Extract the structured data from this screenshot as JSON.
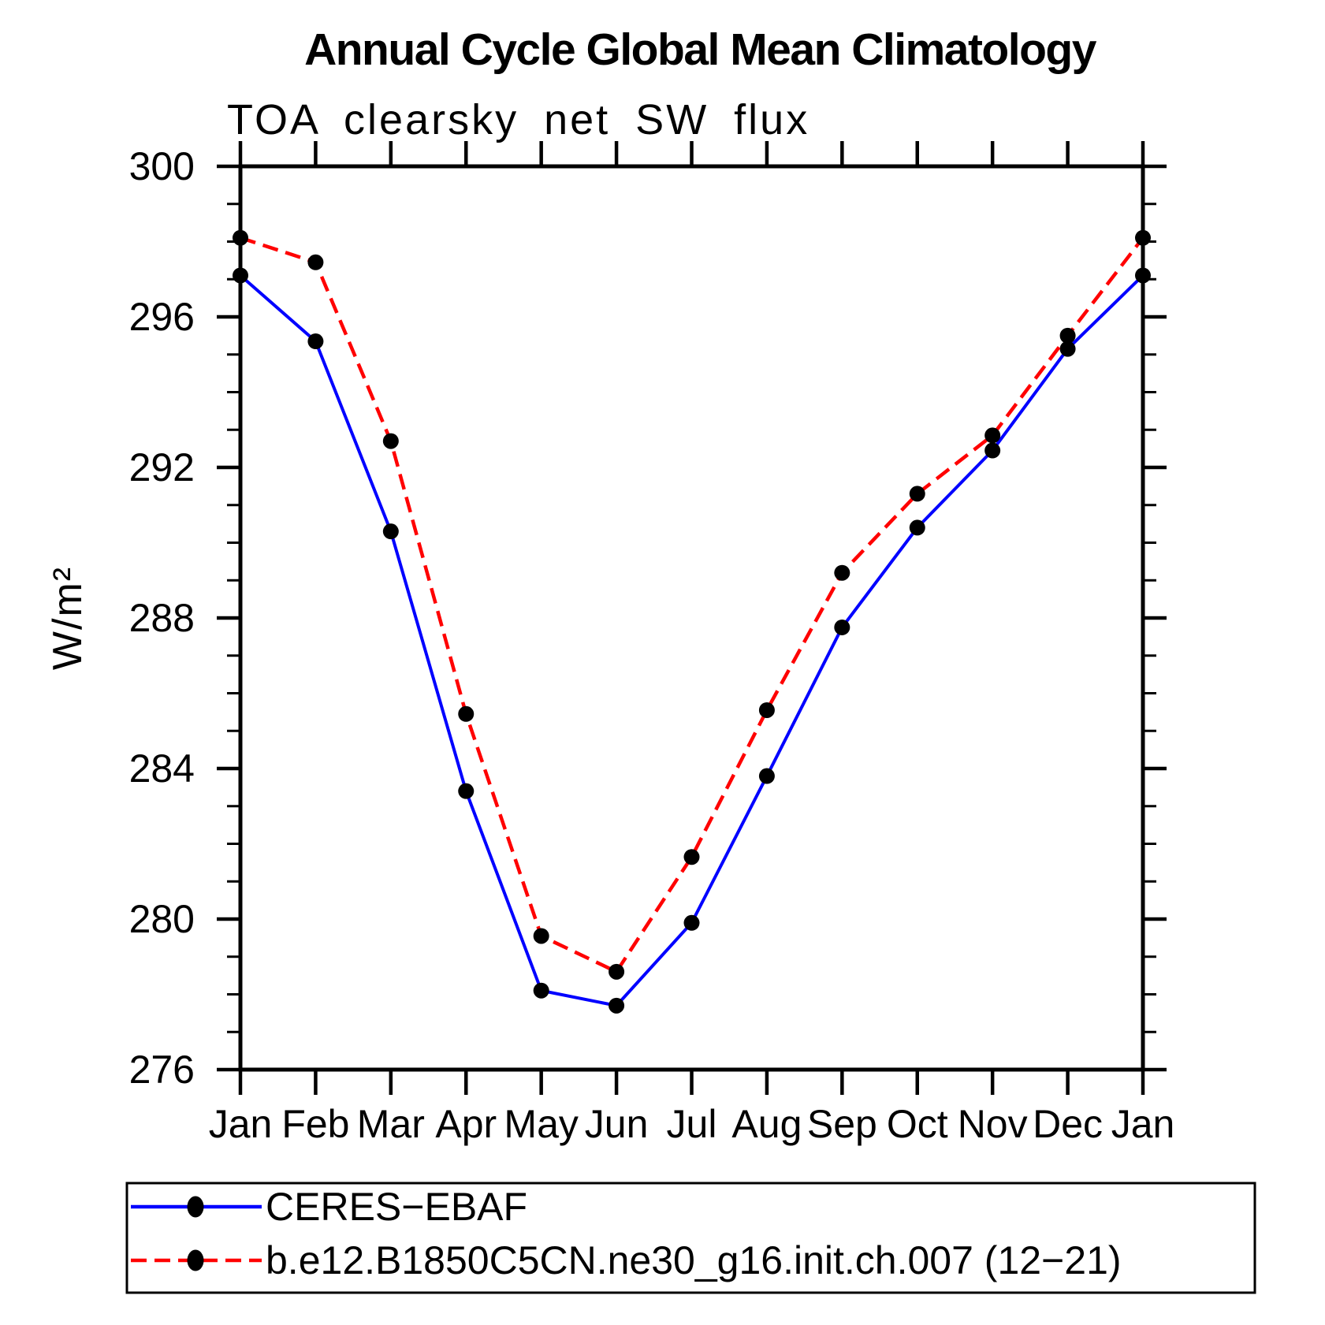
{
  "chart_data": {
    "type": "line",
    "title": "Annual Cycle Global Mean Climatology",
    "subtitle": "TOA clearsky net SW flux",
    "ylabel": "W/m²",
    "xlabel": "",
    "x_tick_labels": [
      "Jan",
      "Feb",
      "Mar",
      "Apr",
      "May",
      "Jun",
      "Jul",
      "Aug",
      "Sep",
      "Oct",
      "Nov",
      "Dec",
      "Jan"
    ],
    "y_tick_labels": [
      "276",
      "280",
      "284",
      "288",
      "292",
      "296",
      "300"
    ],
    "ylim": [
      276,
      300
    ],
    "y_major_step": 4,
    "y_minor_step": 1,
    "grid": false,
    "legend_position": "bottom",
    "marker_color": "#000000",
    "series": [
      {
        "name": "CERES−EBAF",
        "color": "#0000ff",
        "style": "solid",
        "marker": "circle",
        "values": [
          297.1,
          295.35,
          290.3,
          283.4,
          278.1,
          277.7,
          279.9,
          283.8,
          287.75,
          290.4,
          292.45,
          295.15,
          297.1
        ]
      },
      {
        "name": "b.e12.B1850C5CN.ne30_g16.init.ch.007 (12−21)",
        "color": "#ff0000",
        "style": "dashed",
        "marker": "circle",
        "values": [
          298.1,
          297.45,
          292.7,
          285.45,
          279.55,
          278.6,
          281.65,
          285.55,
          289.2,
          291.3,
          292.85,
          295.5,
          298.1
        ]
      }
    ]
  }
}
